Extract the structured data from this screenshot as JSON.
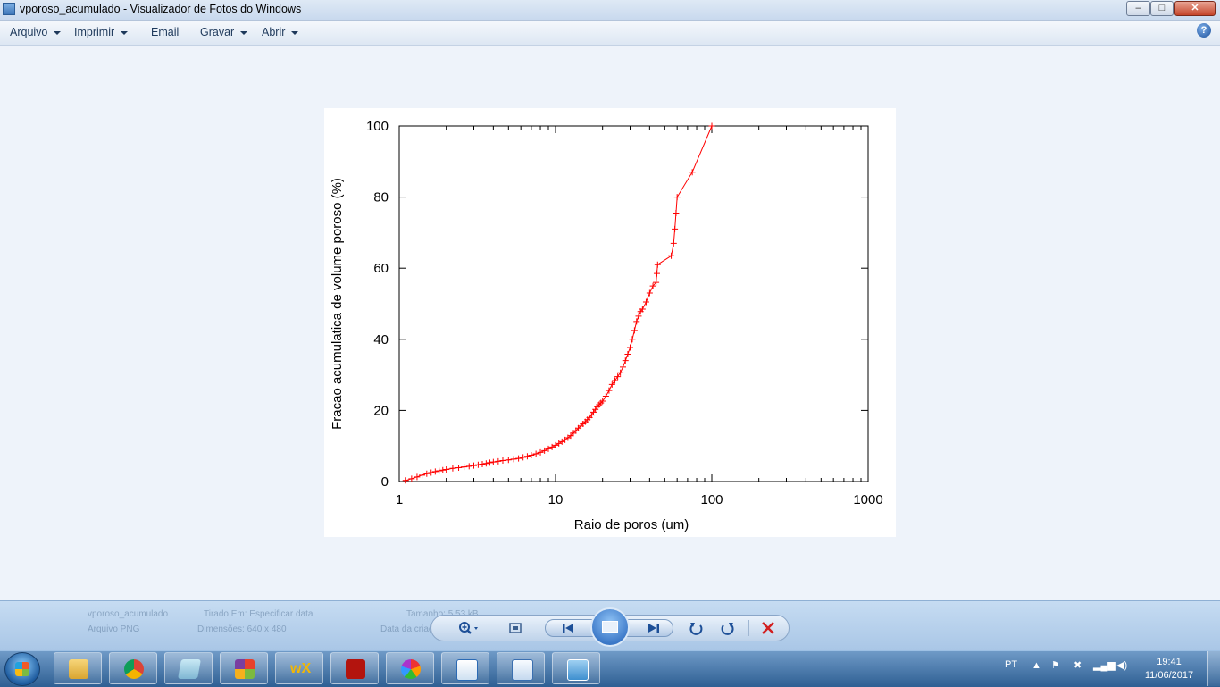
{
  "window": {
    "title": "vporoso_acumulado - Visualizador de Fotos do Windows",
    "controls": {
      "minimize": "–",
      "maximize": "□",
      "close": "✕"
    }
  },
  "menu": {
    "items": [
      {
        "label": "Arquivo",
        "dropdown": true
      },
      {
        "label": "Imprimir",
        "dropdown": true
      },
      {
        "label": "Email",
        "dropdown": false
      },
      {
        "label": "Gravar",
        "dropdown": true
      },
      {
        "label": "Abrir",
        "dropdown": true
      }
    ],
    "help_icon": "?"
  },
  "chart_data": {
    "type": "line",
    "title": "",
    "xlabel": "Raio de poros (um)",
    "ylabel": "Fracao acumulatica de volume poroso (%)",
    "xscale": "log",
    "xlim": [
      1,
      1000
    ],
    "ylim": [
      0,
      100
    ],
    "xticks": [
      "1",
      "10",
      "100",
      "1000"
    ],
    "yticks": [
      "0",
      "20",
      "40",
      "60",
      "80",
      "100"
    ],
    "grid": false,
    "legend": "none",
    "color": "#ff0000",
    "marker": "+",
    "series": [
      {
        "x": [
          1.1,
          1.2,
          1.3,
          1.4,
          1.5,
          1.6,
          1.7,
          1.8,
          1.9,
          2.0,
          2.2,
          2.4,
          2.6,
          2.8,
          3.0,
          3.2,
          3.4,
          3.6,
          3.8,
          4.0,
          4.3,
          4.6,
          5.0,
          5.4,
          5.8,
          6.2,
          6.6,
          7.0,
          7.5,
          8.0,
          8.5,
          9.0,
          9.5,
          10,
          10.5,
          11,
          11.5,
          12,
          12.5,
          13,
          13.5,
          14,
          14.5,
          15,
          15.5,
          16,
          16.5,
          17,
          17.5,
          18,
          18.5,
          19,
          19.5,
          20,
          21,
          22,
          23,
          24,
          25,
          26,
          27,
          28,
          29,
          30,
          31,
          32,
          33,
          34,
          35,
          36,
          38,
          40,
          42,
          44,
          44.5,
          45,
          55,
          57,
          58,
          59,
          60,
          75,
          100
        ],
        "y": [
          0.3,
          0.8,
          1.3,
          1.8,
          2.2,
          2.5,
          2.8,
          3.0,
          3.2,
          3.4,
          3.7,
          3.9,
          4.1,
          4.3,
          4.5,
          4.7,
          4.9,
          5.1,
          5.3,
          5.5,
          5.7,
          5.9,
          6.1,
          6.3,
          6.5,
          6.8,
          7.1,
          7.4,
          7.8,
          8.2,
          8.7,
          9.2,
          9.7,
          10.2,
          10.7,
          11.2,
          11.7,
          12.3,
          12.9,
          13.6,
          14.3,
          15.0,
          15.6,
          16.2,
          16.8,
          17.4,
          18.0,
          18.7,
          19.5,
          20.3,
          21.0,
          21.6,
          22.1,
          22.6,
          24.0,
          25.6,
          27.3,
          28.4,
          29.5,
          30.6,
          32.2,
          34.0,
          35.8,
          37.7,
          40.0,
          42.5,
          45.0,
          46.5,
          47.8,
          48.5,
          50.5,
          53.0,
          55.0,
          56.0,
          58.5,
          61.0,
          63.5,
          67.0,
          71.0,
          75.5,
          80.0,
          87.0,
          100.0
        ]
      }
    ]
  },
  "bottom_panel": {
    "info_fields": [
      "vporoso_acumulado",
      "Tirado Em: Especificar data",
      "Tamanho: 5,53 kB",
      "Arquivo PNG",
      "Dimensões: 640 x 480",
      "Data da criação: 11/06/2017 19:41"
    ]
  },
  "viewer_controls": {
    "zoom_icon": "zoom-icon",
    "fit_icon": "fit-window-icon",
    "previous_icon": "previous-icon",
    "slideshow_icon": "slideshow-icon",
    "next_icon": "next-icon",
    "rotate_ccw_icon": "rotate-counterclockwise-icon",
    "rotate_cw_icon": "rotate-clockwise-icon",
    "delete_icon": "delete-icon"
  },
  "taskbar": {
    "apps": [
      "windows-explorer",
      "google-chrome",
      "notepad",
      "microsoft-office",
      "wxmaxima",
      "adobe-acrobat",
      "picasa",
      "wordpad",
      "word-document",
      "windows-photo-viewer"
    ],
    "language": "PT",
    "time": "19:41",
    "date": "11/06/2017"
  }
}
